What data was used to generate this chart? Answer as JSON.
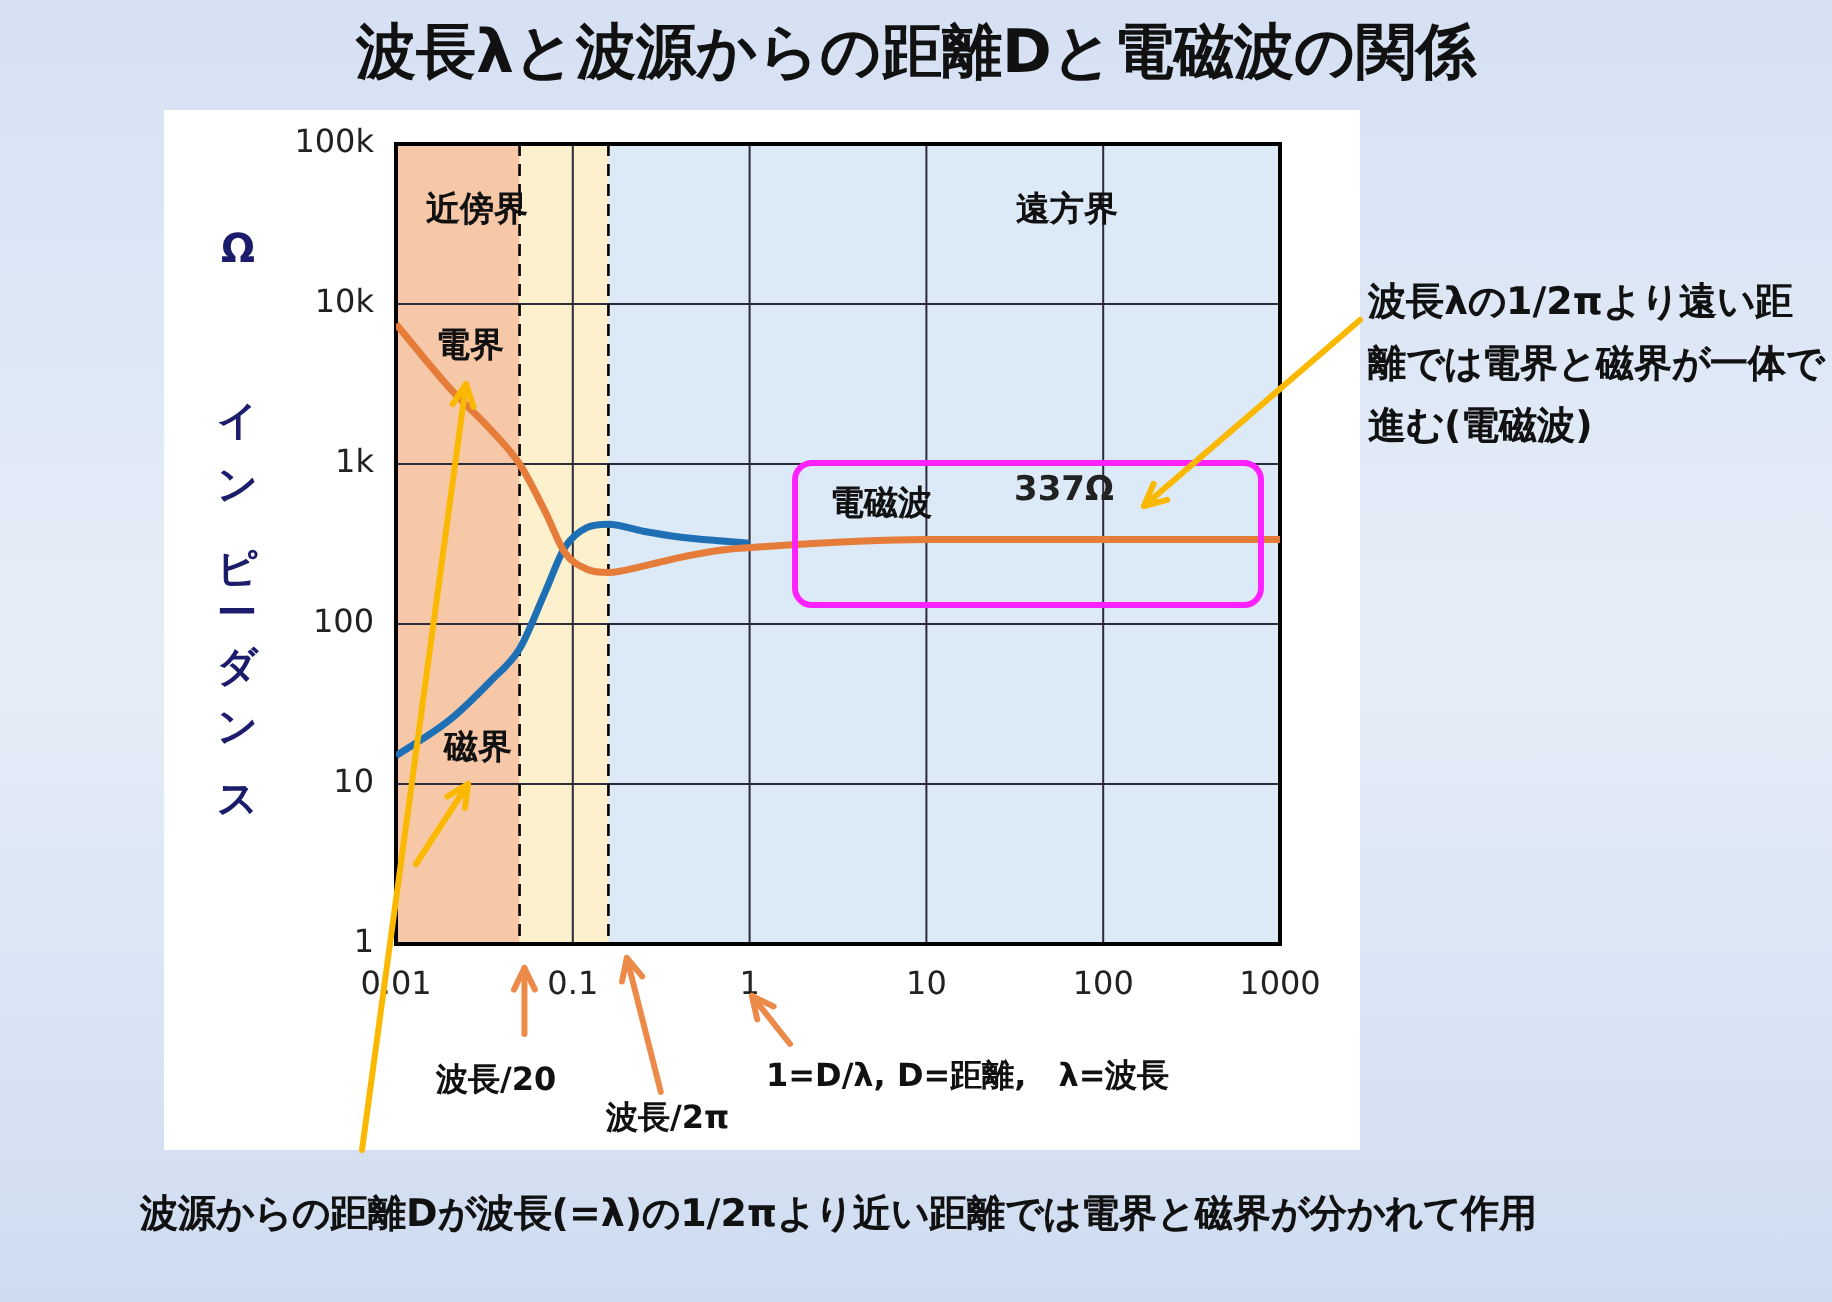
{
  "chart_data": {
    "type": "line",
    "title": "波長λと波源からの距離Dと電磁波の関係",
    "ylabel": "Ω インピーダンス",
    "log": "xy",
    "grid": true,
    "legend": false,
    "marker": "none",
    "line_style": "solid",
    "xlim": [
      0.01,
      1000
    ],
    "xticks": [
      0.01,
      0.1,
      1,
      10,
      100,
      1000
    ],
    "ylim": [
      1,
      100000
    ],
    "yticks": [
      1,
      10,
      100,
      {
        "value": 1000,
        "label": "1k"
      },
      {
        "value": 10000,
        "label": "10k"
      },
      {
        "value": 100000,
        "label": "100k"
      }
    ],
    "series": [
      {
        "color": "#e57c3a",
        "x": [
          0.01,
          0.02,
          0.035,
          0.05,
          0.07,
          0.09,
          0.12,
          0.159,
          0.25,
          0.4,
          0.7,
          1,
          10,
          100,
          1000
        ],
        "values": [
          7500,
          3000,
          1600,
          1000,
          500,
          280,
          220,
          210,
          230,
          260,
          290,
          300,
          337,
          337,
          337
        ]
      },
      {
        "color": "#1f6fb5",
        "x": [
          0.01,
          0.02,
          0.035,
          0.05,
          0.07,
          0.09,
          0.12,
          0.159,
          0.25,
          0.4,
          0.7,
          1
        ],
        "values": [
          15,
          25,
          45,
          70,
          160,
          300,
          400,
          420,
          380,
          350,
          330,
          320
        ]
      }
    ],
    "bands": [
      {
        "axis": "x",
        "from": 0.01,
        "to": 0.05,
        "color": "#f6c8a8"
      },
      {
        "axis": "x",
        "from": 0.05,
        "to": 0.159,
        "color": "#fdf0cd"
      },
      {
        "axis": "x",
        "from": 0.159,
        "to": 1000,
        "color": "#dce9f6"
      }
    ],
    "ref_lines": [
      {
        "axis": "x",
        "value": 0.05,
        "line_style": "dashed",
        "color": "#000000"
      },
      {
        "axis": "x",
        "value": 0.159,
        "line_style": "dashed",
        "color": "#000000"
      }
    ],
    "annotations": [
      "近傍界",
      "遠方界",
      "電界",
      "磁界",
      "電磁波",
      {
        "text": "337Ω",
        "x": 60,
        "y": 337
      },
      "波長/20",
      "波長/2π",
      "1=D/λ, D=距離,　λ=波長",
      "波長λの1/2πより遠い距離では電界と磁界が一体で進む(電磁波)",
      "波源からの距離Dが波長(=λ)の1/2πより近い距離では電界と磁界が分かれて作用"
    ]
  }
}
